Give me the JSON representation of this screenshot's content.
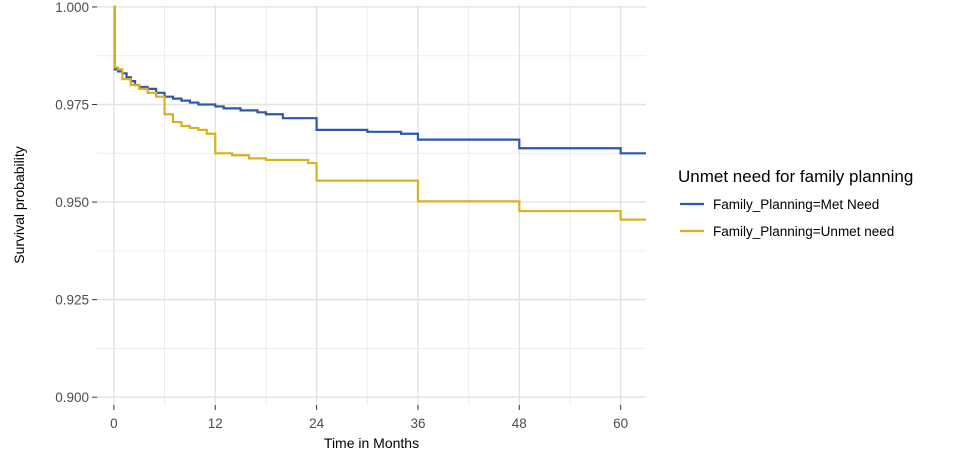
{
  "chart_data": {
    "type": "line",
    "step": true,
    "title": "",
    "xlabel": "Time in Months",
    "ylabel": "Survival probability",
    "xlim": [
      -2,
      63
    ],
    "ylim": [
      0.898,
      1.0005
    ],
    "x_ticks": [
      0,
      12,
      24,
      36,
      48,
      60
    ],
    "x_tick_labels": [
      "0",
      "12",
      "24",
      "36",
      "48",
      "60"
    ],
    "y_ticks": [
      0.9,
      0.925,
      0.95,
      0.975,
      1.0
    ],
    "y_tick_labels": [
      "0.900",
      "0.925",
      "0.950",
      "0.975",
      "1.000"
    ],
    "grid": true,
    "legend": {
      "title": "Unmet need for family planning",
      "position": "right"
    },
    "series": [
      {
        "name": "Family_Planning=Met Need",
        "color": "#2E56B0",
        "x": [
          0,
          0.1,
          0.5,
          1,
          1.5,
          2,
          2.5,
          3,
          4,
          5,
          6,
          7,
          8,
          9,
          10,
          12,
          13,
          15,
          17,
          18,
          20,
          24,
          30,
          34,
          36,
          42,
          48,
          54,
          60,
          63
        ],
        "y": [
          1.0,
          0.984,
          0.9835,
          0.983,
          0.982,
          0.981,
          0.98,
          0.9795,
          0.979,
          0.978,
          0.977,
          0.9765,
          0.976,
          0.9755,
          0.975,
          0.9745,
          0.974,
          0.9735,
          0.973,
          0.9725,
          0.9715,
          0.9685,
          0.968,
          0.9675,
          0.966,
          0.966,
          0.9638,
          0.9638,
          0.9625,
          0.9625
        ]
      },
      {
        "name": "Family_Planning=Unmet need",
        "color": "#D9B11C",
        "x": [
          0,
          0.1,
          0.5,
          1,
          2,
          3,
          4,
          5,
          6,
          7,
          8,
          9,
          10,
          11,
          12,
          14,
          16,
          18,
          23,
          24,
          30,
          36,
          42,
          48,
          54,
          60,
          63
        ],
        "y": [
          1.0,
          0.9845,
          0.984,
          0.9815,
          0.98,
          0.979,
          0.978,
          0.977,
          0.9725,
          0.9705,
          0.9695,
          0.969,
          0.9685,
          0.9675,
          0.9625,
          0.962,
          0.9612,
          0.9608,
          0.96,
          0.9555,
          0.9555,
          0.9502,
          0.9502,
          0.9477,
          0.9477,
          0.9455,
          0.9455
        ]
      }
    ]
  }
}
